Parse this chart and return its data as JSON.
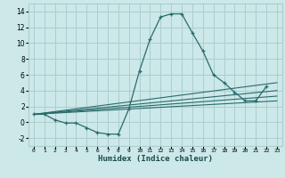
{
  "xlabel": "Humidex (Indice chaleur)",
  "bg_color": "#cce8e8",
  "grid_color": "#aacece",
  "line_color": "#2a6b6b",
  "xlim": [
    -0.5,
    23.5
  ],
  "ylim": [
    -3,
    15
  ],
  "x_ticks": [
    0,
    1,
    2,
    3,
    4,
    5,
    6,
    7,
    8,
    9,
    10,
    11,
    12,
    13,
    14,
    15,
    16,
    17,
    18,
    19,
    20,
    21,
    22,
    23
  ],
  "y_ticks": [
    -2,
    0,
    2,
    4,
    6,
    8,
    10,
    12,
    14
  ],
  "series": {
    "main": {
      "x": [
        0,
        1,
        2,
        3,
        4,
        5,
        6,
        7,
        8,
        9,
        10,
        11,
        12,
        13,
        14,
        15,
        16,
        17,
        18,
        19,
        20,
        21,
        22
      ],
      "y": [
        1,
        1,
        0.3,
        -0.1,
        -0.1,
        -0.7,
        -1.3,
        -1.5,
        -1.5,
        1.7,
        6.5,
        10.5,
        13.3,
        13.7,
        13.7,
        11.3,
        9.0,
        6.0,
        5.0,
        3.8,
        2.7,
        2.7,
        4.5
      ]
    },
    "line1": {
      "x": [
        0,
        23
      ],
      "y": [
        1,
        5.0
      ]
    },
    "line2": {
      "x": [
        0,
        23
      ],
      "y": [
        1,
        4.0
      ]
    },
    "line3": {
      "x": [
        0,
        23
      ],
      "y": [
        1,
        3.3
      ]
    },
    "line4": {
      "x": [
        0,
        23
      ],
      "y": [
        1,
        2.7
      ]
    }
  }
}
